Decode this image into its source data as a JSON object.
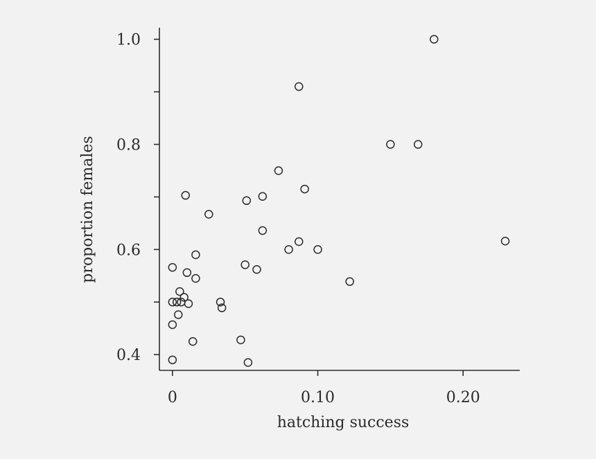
{
  "chart_data": {
    "type": "scatter",
    "title": "",
    "xlabel": "hatching success",
    "ylabel": "proportion females",
    "xlim": [
      -0.009,
      0.239
    ],
    "ylim": [
      0.37,
      1.022
    ],
    "x_ticks": [
      0,
      0.1,
      0.2
    ],
    "x_tick_labels": [
      "0",
      "0.10",
      "0.20"
    ],
    "y_ticks": [
      0.4,
      0.6,
      0.8,
      1.0
    ],
    "y_tick_labels": [
      "0.4",
      "0.6",
      "0.8",
      "1.0"
    ],
    "y_minor_ticks": [
      0.5,
      0.7,
      0.9
    ],
    "grid": false,
    "marker": "open-circle",
    "points": [
      {
        "x": 0.18,
        "y": 1.0
      },
      {
        "x": 0.087,
        "y": 0.91
      },
      {
        "x": 0.15,
        "y": 0.8
      },
      {
        "x": 0.169,
        "y": 0.8
      },
      {
        "x": 0.073,
        "y": 0.75
      },
      {
        "x": 0.091,
        "y": 0.715
      },
      {
        "x": 0.062,
        "y": 0.701
      },
      {
        "x": 0.009,
        "y": 0.703
      },
      {
        "x": 0.051,
        "y": 0.693
      },
      {
        "x": 0.025,
        "y": 0.667
      },
      {
        "x": 0.062,
        "y": 0.636
      },
      {
        "x": 0.087,
        "y": 0.615
      },
      {
        "x": 0.08,
        "y": 0.6
      },
      {
        "x": 0.1,
        "y": 0.6
      },
      {
        "x": 0.229,
        "y": 0.616
      },
      {
        "x": 0.016,
        "y": 0.59
      },
      {
        "x": 0.0,
        "y": 0.566
      },
      {
        "x": 0.05,
        "y": 0.571
      },
      {
        "x": 0.058,
        "y": 0.562
      },
      {
        "x": 0.01,
        "y": 0.556
      },
      {
        "x": 0.016,
        "y": 0.545
      },
      {
        "x": 0.122,
        "y": 0.539
      },
      {
        "x": 0.005,
        "y": 0.52
      },
      {
        "x": 0.008,
        "y": 0.509
      },
      {
        "x": 0.0,
        "y": 0.5
      },
      {
        "x": 0.003,
        "y": 0.5
      },
      {
        "x": 0.006,
        "y": 0.5
      },
      {
        "x": 0.011,
        "y": 0.497
      },
      {
        "x": 0.033,
        "y": 0.5
      },
      {
        "x": 0.034,
        "y": 0.489
      },
      {
        "x": 0.004,
        "y": 0.476
      },
      {
        "x": 0.0,
        "y": 0.457
      },
      {
        "x": 0.014,
        "y": 0.425
      },
      {
        "x": 0.047,
        "y": 0.428
      },
      {
        "x": 0.0,
        "y": 0.39
      },
      {
        "x": 0.052,
        "y": 0.385
      }
    ]
  }
}
